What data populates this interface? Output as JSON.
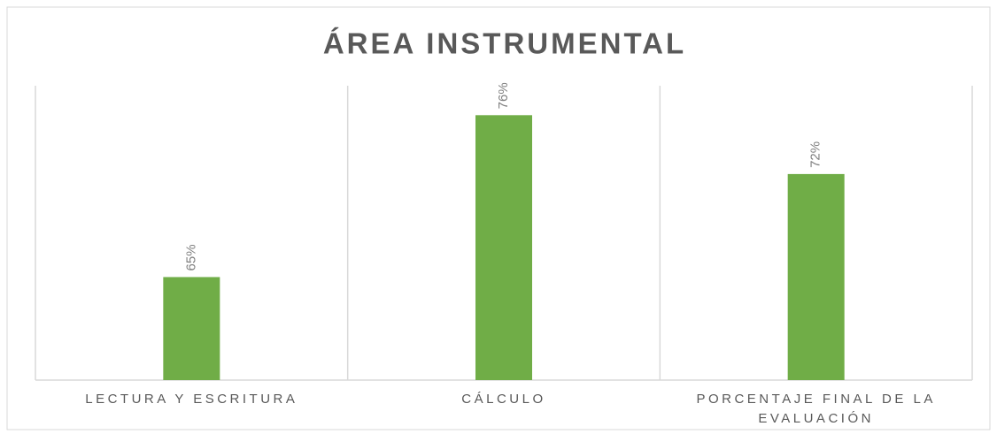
{
  "chart_data": {
    "type": "bar",
    "title": "ÁREA INSTRUMENTAL",
    "categories": [
      "LECTURA Y ESCRITURA",
      "CÁLCULO",
      "PORCENTAJE FINAL DE LA EVALUACIÓN"
    ],
    "values": [
      65,
      76,
      72
    ],
    "value_labels": [
      "65%",
      "76%",
      "72%"
    ],
    "color": "#70ad47",
    "ylim": [
      58,
      78
    ]
  }
}
